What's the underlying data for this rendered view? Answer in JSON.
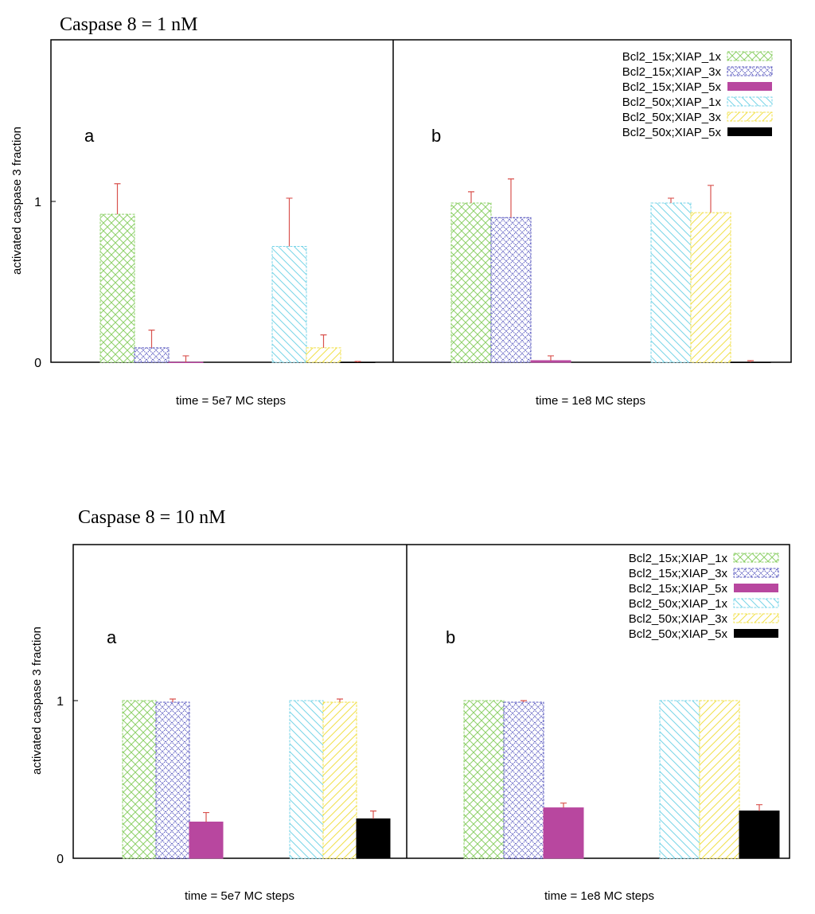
{
  "colors": {
    "Bcl2_15x;XIAP_1x": "#8fd16a",
    "Bcl2_15x;XIAP_3x": "#5a5ac0",
    "Bcl2_15x;XIAP_5x": "#b8479f",
    "Bcl2_50x;XIAP_1x": "#79d5e8",
    "Bcl2_50x;XIAP_3x": "#f1e04a",
    "Bcl2_50x;XIAP_5x": "#000000",
    "error_bar": "#d9534f",
    "axis": "#000000"
  },
  "chart_data": [
    {
      "type": "bar",
      "title": "Caspase 8 = 1 nM",
      "ylabel": "activated caspase 3 fraction",
      "ylim": [
        0,
        2
      ],
      "yticks": [
        "0",
        "1"
      ],
      "series_names": [
        "Bcl2_15x;XIAP_1x",
        "Bcl2_15x;XIAP_3x",
        "Bcl2_15x;XIAP_5x",
        "Bcl2_50x;XIAP_1x",
        "Bcl2_50x;XIAP_3x",
        "Bcl2_50x;XIAP_5x"
      ],
      "panels": [
        {
          "label": "a",
          "xlabel": "time = 5e7 MC steps",
          "values": [
            0.92,
            0.09,
            0.0,
            0.72,
            0.09,
            0.0
          ],
          "errors": [
            0.19,
            0.11,
            0.04,
            0.3,
            0.08,
            0.005
          ]
        },
        {
          "label": "b",
          "xlabel": "time = 1e8 MC steps",
          "values": [
            0.99,
            0.9,
            0.01,
            0.99,
            0.93,
            0.0
          ],
          "errors": [
            0.07,
            0.24,
            0.03,
            0.03,
            0.17,
            0.01
          ]
        }
      ]
    },
    {
      "type": "bar",
      "title": "Caspase 8 = 10 nM",
      "ylabel": "activated caspase 3 fraction",
      "ylim": [
        0,
        2
      ],
      "yticks": [
        "0",
        "1"
      ],
      "series_names": [
        "Bcl2_15x;XIAP_1x",
        "Bcl2_15x;XIAP_3x",
        "Bcl2_15x;XIAP_5x",
        "Bcl2_50x;XIAP_1x",
        "Bcl2_50x;XIAP_3x",
        "Bcl2_50x;XIAP_5x"
      ],
      "panels": [
        {
          "label": "a",
          "xlabel": "time = 5e7 MC steps",
          "values": [
            1.0,
            0.99,
            0.23,
            1.0,
            0.99,
            0.25
          ],
          "errors": [
            0.0,
            0.02,
            0.06,
            0.0,
            0.02,
            0.05
          ]
        },
        {
          "label": "b",
          "xlabel": "time = 1e8 MC steps",
          "values": [
            1.0,
            0.99,
            0.32,
            1.0,
            1.0,
            0.3
          ],
          "errors": [
            0.0,
            0.01,
            0.03,
            0.0,
            0.0,
            0.04
          ]
        }
      ]
    }
  ]
}
